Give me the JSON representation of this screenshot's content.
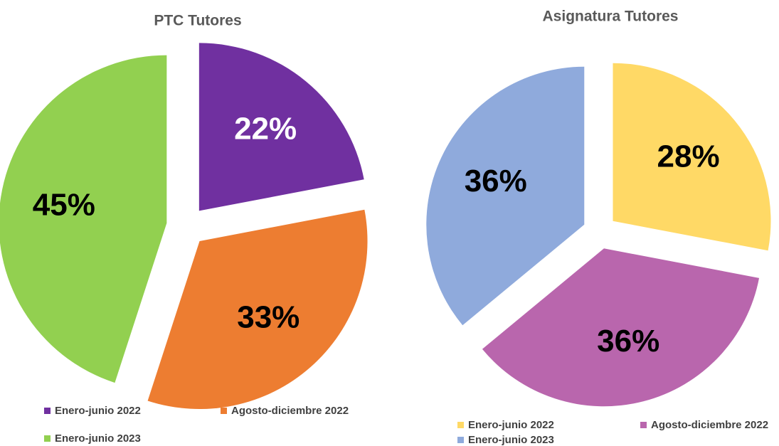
{
  "chart_data": [
    {
      "type": "pie",
      "title": "PTC Tutores",
      "categories": [
        "Enero-junio 2022",
        "Agosto-diciembre 2022",
        "Enero-junio 2023"
      ],
      "values": [
        22,
        33,
        45
      ],
      "value_labels": [
        "22%",
        "33%",
        "45%"
      ],
      "colors": [
        "#7030a0",
        "#ed7d31",
        "#92d050"
      ],
      "label_colors": [
        "#ffffff",
        "#000000",
        "#000000"
      ]
    },
    {
      "type": "pie",
      "title": "Asignatura Tutores",
      "categories": [
        "Enero-junio 2022",
        "Agosto-diciembre 2022",
        "Enero-junio 2023"
      ],
      "values": [
        28,
        36,
        36
      ],
      "value_labels": [
        "28%",
        "36%",
        "36%"
      ],
      "colors": [
        "#ffd966",
        "#b966ad",
        "#8faadc"
      ],
      "label_colors": [
        "#000000",
        "#000000",
        "#000000"
      ]
    }
  ]
}
